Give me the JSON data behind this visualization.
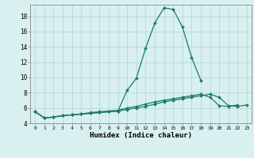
{
  "xlabel": "Humidex (Indice chaleur)",
  "x": [
    0,
    1,
    2,
    3,
    4,
    5,
    6,
    7,
    8,
    9,
    10,
    11,
    12,
    13,
    14,
    15,
    16,
    17,
    18,
    19,
    20,
    21,
    22,
    23
  ],
  "line1": [
    5.5,
    4.7,
    4.8,
    5.0,
    5.1,
    5.2,
    5.3,
    5.4,
    5.5,
    5.6,
    8.3,
    9.9,
    13.8,
    17.1,
    19.1,
    18.9,
    16.6,
    12.6,
    9.6,
    null,
    null,
    null,
    null,
    null
  ],
  "line2": [
    5.5,
    4.7,
    4.8,
    5.0,
    5.1,
    5.2,
    5.4,
    5.5,
    5.6,
    5.7,
    6.0,
    6.2,
    6.5,
    6.8,
    7.0,
    7.2,
    7.4,
    7.6,
    7.8,
    7.4,
    6.3,
    6.2,
    6.4,
    null
  ],
  "line3": [
    5.5,
    4.7,
    4.8,
    5.0,
    5.1,
    5.2,
    5.3,
    5.4,
    5.5,
    5.6,
    5.8,
    6.0,
    6.2,
    6.5,
    6.8,
    7.0,
    7.2,
    7.4,
    7.6,
    7.8,
    7.4,
    6.3,
    6.2,
    6.4
  ],
  "line_color": "#1a7a6e",
  "bg_color": "#d8f0f0",
  "grid_color": "#b8d8d8",
  "ylim": [
    4,
    19.5
  ],
  "xlim": [
    -0.5,
    23.5
  ],
  "yticks": [
    4,
    6,
    8,
    10,
    12,
    14,
    16,
    18
  ],
  "xticks": [
    0,
    1,
    2,
    3,
    4,
    5,
    6,
    7,
    8,
    9,
    10,
    11,
    12,
    13,
    14,
    15,
    16,
    17,
    18,
    19,
    20,
    21,
    22,
    23
  ]
}
